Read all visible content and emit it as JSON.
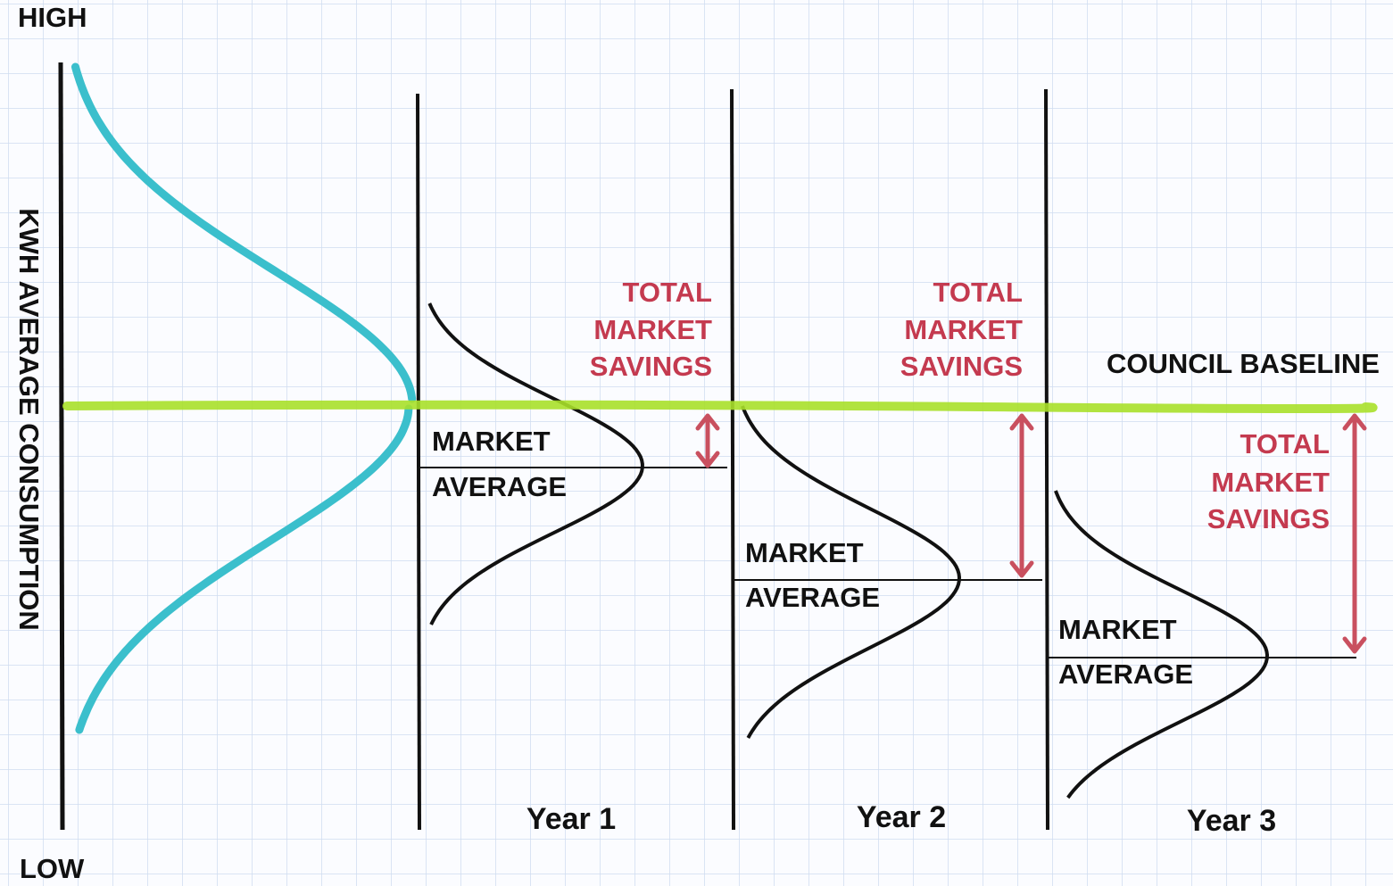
{
  "axis": {
    "high": "HIGH",
    "low": "LOW",
    "label": "KWH AVERAGE CONSUMPTION"
  },
  "baseline_label": "COUNCIL BASELINE",
  "panels": [
    {
      "year": "Year 1",
      "average_label": [
        "MARKET",
        "AVERAGE"
      ],
      "savings_label": [
        "TOTAL",
        "MARKET",
        "SAVINGS"
      ]
    },
    {
      "year": "Year 2",
      "average_label": [
        "MARKET",
        "AVERAGE"
      ],
      "savings_label": [
        "TOTAL",
        "MARKET",
        "SAVINGS"
      ]
    },
    {
      "year": "Year 3",
      "average_label": [
        "MARKET",
        "AVERAGE"
      ],
      "savings_label": [
        "TOTAL",
        "MARKET",
        "SAVINGS"
      ]
    }
  ]
}
